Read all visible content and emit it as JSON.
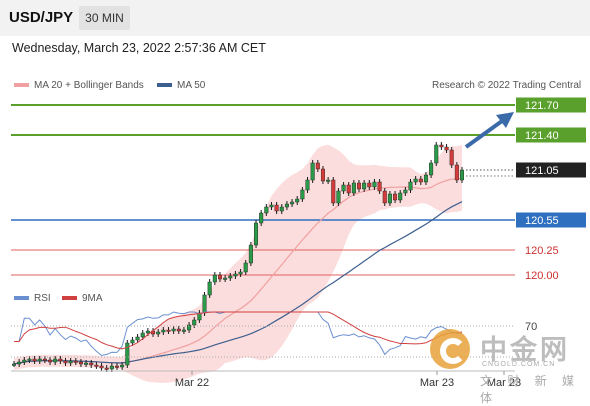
{
  "header": {
    "symbol": "USD/JPY",
    "timeframe": "30 MIN"
  },
  "datetime": "Wednesday, March 23, 2022 2:57:36 AM CET",
  "legend": {
    "ma20_label": "MA 20 + Bollinger Bands",
    "ma50_label": "MA 50",
    "ma20_color": "#f0a0a0",
    "ma50_color": "#3d5f8f",
    "source": "Research © 2022 Trading Central"
  },
  "rsi_legend": {
    "rsi_label": "RSI",
    "ma_label": "9MA",
    "rsi_color": "#6a8fd0",
    "ma_color": "#d04040"
  },
  "watermark": {
    "big": "中金网",
    "small": "CNGOLD.COM.CN",
    "sub": "文 财 新 媒 体"
  },
  "chart_data": {
    "type": "candlestick",
    "price_levels": [
      {
        "value": 121.7,
        "label": "121.70",
        "kind": "resistance",
        "color": "#5aa02c"
      },
      {
        "value": 121.4,
        "label": "121.40",
        "kind": "resistance",
        "color": "#5aa02c"
      },
      {
        "value": 121.05,
        "label": "121.05",
        "kind": "last-price",
        "color": "#222222"
      },
      {
        "value": 120.55,
        "label": "120.55",
        "kind": "pivot",
        "color": "#2f6fc0"
      },
      {
        "value": 120.25,
        "label": "120.25",
        "kind": "support",
        "color": "#e06060"
      },
      {
        "value": 120.0,
        "label": "120.00",
        "kind": "support",
        "color": "#e06060"
      }
    ],
    "xaxis_ticks": [
      "Mar 22",
      "Mar 23",
      "Mar 23"
    ],
    "rsi_level": "70",
    "ylim": [
      119.0,
      121.8
    ],
    "closes": [
      119.11,
      119.13,
      119.15,
      119.16,
      119.14,
      119.16,
      119.15,
      119.13,
      119.16,
      119.14,
      119.12,
      119.14,
      119.13,
      119.11,
      119.12,
      119.1,
      119.09,
      119.07,
      119.06,
      119.09,
      119.08,
      119.1,
      119.32,
      119.35,
      119.38,
      119.42,
      119.44,
      119.41,
      119.43,
      119.45,
      119.44,
      119.46,
      119.44,
      119.45,
      119.5,
      119.55,
      119.62,
      119.8,
      119.93,
      120.0,
      119.96,
      119.97,
      119.99,
      120.01,
      120.03,
      120.12,
      120.3,
      120.52,
      120.62,
      120.68,
      120.7,
      120.64,
      120.68,
      120.71,
      120.73,
      120.76,
      120.85,
      120.95,
      121.12,
      121.06,
      120.94,
      120.95,
      120.72,
      120.84,
      120.9,
      120.82,
      120.92,
      120.86,
      120.92,
      120.88,
      120.93,
      120.84,
      120.72,
      120.81,
      120.75,
      120.82,
      120.85,
      120.93,
      120.96,
      120.93,
      121.0,
      121.12,
      121.3,
      121.28,
      121.25,
      121.1,
      120.95,
      121.05
    ]
  }
}
